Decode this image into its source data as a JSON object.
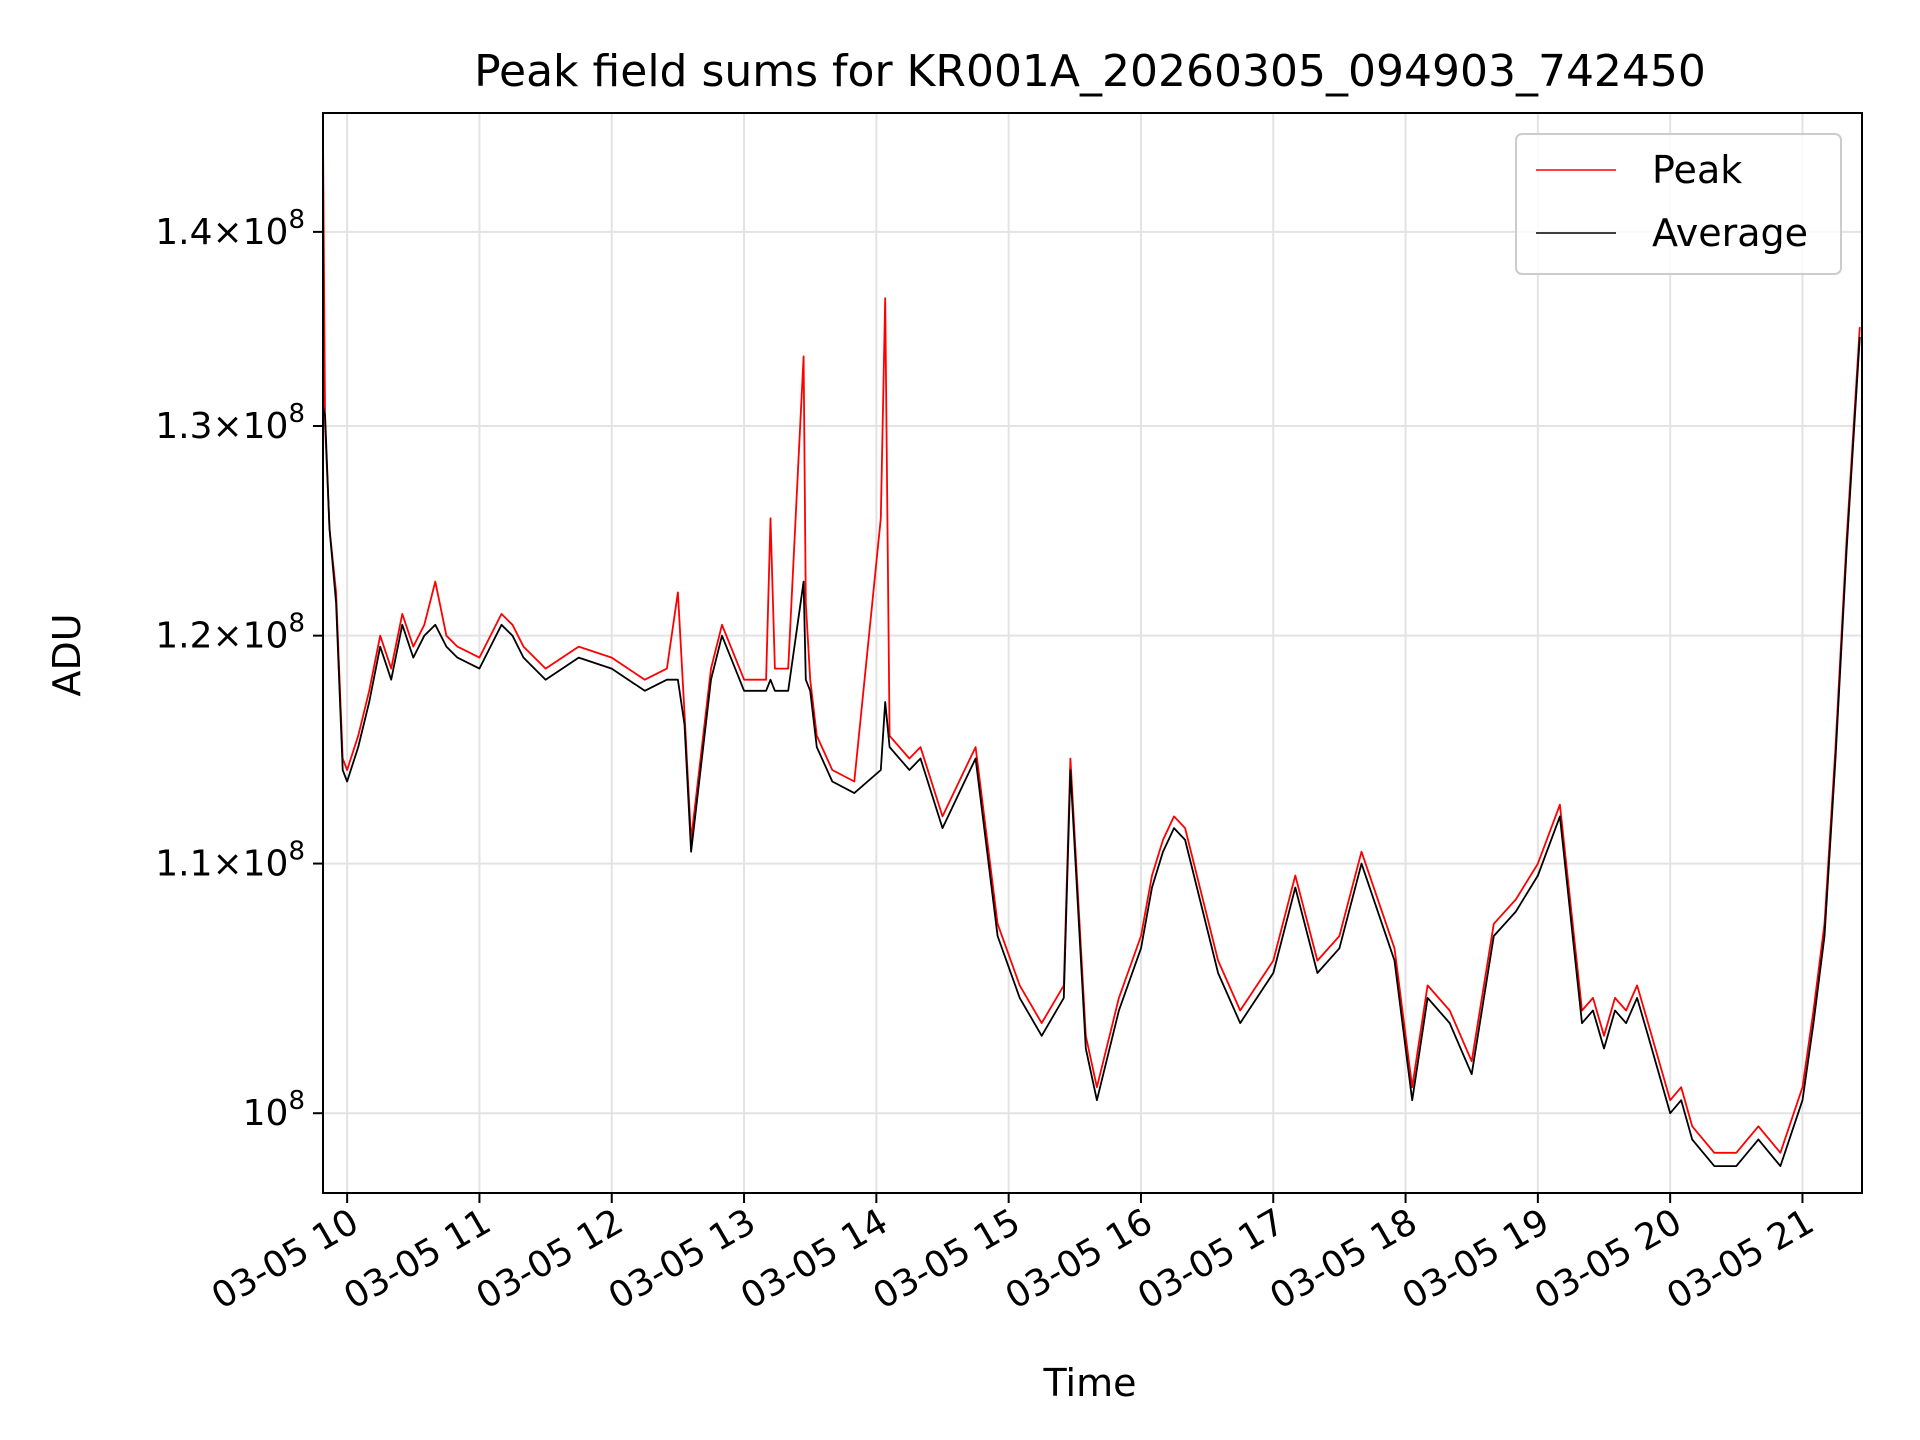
{
  "chart_data": {
    "type": "line",
    "title": "Peak field sums for KR001A_20260305_094903_742450",
    "xlabel": "Time",
    "ylabel": "ADU",
    "y_scale": "log",
    "ylim": [
      97000000,
      146500000
    ],
    "xlim": [
      "2026-03-05T09:49:03",
      "2026-03-05T21:27:00"
    ],
    "x_ticks": [
      {
        "t": "2026-03-05T10:00",
        "label": "03-05 10"
      },
      {
        "t": "2026-03-05T11:00",
        "label": "03-05 11"
      },
      {
        "t": "2026-03-05T12:00",
        "label": "03-05 12"
      },
      {
        "t": "2026-03-05T13:00",
        "label": "03-05 13"
      },
      {
        "t": "2026-03-05T14:00",
        "label": "03-05 14"
      },
      {
        "t": "2026-03-05T15:00",
        "label": "03-05 15"
      },
      {
        "t": "2026-03-05T16:00",
        "label": "03-05 16"
      },
      {
        "t": "2026-03-05T17:00",
        "label": "03-05 17"
      },
      {
        "t": "2026-03-05T18:00",
        "label": "03-05 18"
      },
      {
        "t": "2026-03-05T19:00",
        "label": "03-05 19"
      },
      {
        "t": "2026-03-05T20:00",
        "label": "03-05 20"
      },
      {
        "t": "2026-03-05T21:00",
        "label": "03-05 21"
      }
    ],
    "y_ticks": [
      {
        "value": 100000000,
        "mantissa": "",
        "exponent": "8"
      },
      {
        "value": 110000000,
        "mantissa": "1.1",
        "exponent": "8"
      },
      {
        "value": 120000000,
        "mantissa": "1.2",
        "exponent": "8"
      },
      {
        "value": 130000000,
        "mantissa": "1.3",
        "exponent": "8"
      },
      {
        "value": 140000000,
        "mantissa": "1.4",
        "exponent": "8"
      }
    ],
    "grid": true,
    "legend_position": "top-right",
    "series": [
      {
        "name": "Peak",
        "color": "#ff0000",
        "x": [
          "2026-03-05T09:49",
          "2026-03-05T09:50",
          "2026-03-05T09:52",
          "2026-03-05T09:55",
          "2026-03-05T09:58",
          "2026-03-05T10:00",
          "2026-03-05T10:05",
          "2026-03-05T10:10",
          "2026-03-05T10:15",
          "2026-03-05T10:20",
          "2026-03-05T10:25",
          "2026-03-05T10:30",
          "2026-03-05T10:35",
          "2026-03-05T10:40",
          "2026-03-05T10:45",
          "2026-03-05T10:50",
          "2026-03-05T11:00",
          "2026-03-05T11:10",
          "2026-03-05T11:15",
          "2026-03-05T11:20",
          "2026-03-05T11:30",
          "2026-03-05T11:45",
          "2026-03-05T12:00",
          "2026-03-05T12:15",
          "2026-03-05T12:25",
          "2026-03-05T12:30",
          "2026-03-05T12:33",
          "2026-03-05T12:36",
          "2026-03-05T12:45",
          "2026-03-05T12:50",
          "2026-03-05T13:00",
          "2026-03-05T13:10",
          "2026-03-05T13:12",
          "2026-03-05T13:14",
          "2026-03-05T13:20",
          "2026-03-05T13:27",
          "2026-03-05T13:28",
          "2026-03-05T13:30",
          "2026-03-05T13:33",
          "2026-03-05T13:40",
          "2026-03-05T13:50",
          "2026-03-05T14:02",
          "2026-03-05T14:04",
          "2026-03-05T14:06",
          "2026-03-05T14:15",
          "2026-03-05T14:20",
          "2026-03-05T14:30",
          "2026-03-05T14:40",
          "2026-03-05T14:45",
          "2026-03-05T14:55",
          "2026-03-05T15:05",
          "2026-03-05T15:15",
          "2026-03-05T15:25",
          "2026-03-05T15:28",
          "2026-03-05T15:35",
          "2026-03-05T15:40",
          "2026-03-05T15:50",
          "2026-03-05T16:00",
          "2026-03-05T16:05",
          "2026-03-05T16:10",
          "2026-03-05T16:15",
          "2026-03-05T16:20",
          "2026-03-05T16:35",
          "2026-03-05T16:45",
          "2026-03-05T17:00",
          "2026-03-05T17:10",
          "2026-03-05T17:20",
          "2026-03-05T17:30",
          "2026-03-05T17:40",
          "2026-03-05T17:55",
          "2026-03-05T18:03",
          "2026-03-05T18:10",
          "2026-03-05T18:20",
          "2026-03-05T18:30",
          "2026-03-05T18:40",
          "2026-03-05T18:50",
          "2026-03-05T19:00",
          "2026-03-05T19:10",
          "2026-03-05T19:20",
          "2026-03-05T19:25",
          "2026-03-05T19:30",
          "2026-03-05T19:35",
          "2026-03-05T19:40",
          "2026-03-05T19:45",
          "2026-03-05T19:50",
          "2026-03-05T20:00",
          "2026-03-05T20:05",
          "2026-03-05T20:10",
          "2026-03-05T20:20",
          "2026-03-05T20:30",
          "2026-03-05T20:40",
          "2026-03-05T20:50",
          "2026-03-05T21:00",
          "2026-03-05T21:05",
          "2026-03-05T21:10",
          "2026-03-05T21:15",
          "2026-03-05T21:20",
          "2026-03-05T21:26"
        ],
        "values": [
          146000000,
          130000000,
          125000000,
          122000000,
          114500000,
          114000000,
          115500000,
          117500000,
          120000000,
          118500000,
          121000000,
          119500000,
          120500000,
          122500000,
          120000000,
          119500000,
          119000000,
          121000000,
          120500000,
          119500000,
          118500000,
          119500000,
          119000000,
          118000000,
          118500000,
          122000000,
          116500000,
          111000000,
          118500000,
          120500000,
          118000000,
          118000000,
          125500000,
          118500000,
          118500000,
          133500000,
          121500000,
          118000000,
          115500000,
          114000000,
          113500000,
          125500000,
          136500000,
          115500000,
          114500000,
          115000000,
          112000000,
          114000000,
          115000000,
          107500000,
          105000000,
          103500000,
          105000000,
          114500000,
          103000000,
          101000000,
          104500000,
          107000000,
          109500000,
          111000000,
          112000000,
          111500000,
          106000000,
          104000000,
          106000000,
          109500000,
          106000000,
          107000000,
          110500000,
          106500000,
          101000000,
          105000000,
          104000000,
          102000000,
          107500000,
          108500000,
          110000000,
          112500000,
          104000000,
          104500000,
          103000000,
          104500000,
          104000000,
          105000000,
          103500000,
          100500000,
          101000000,
          99500000,
          98500000,
          98500000,
          99500000,
          98500000,
          101000000,
          104000000,
          107500000,
          115000000,
          124500000,
          135000000
        ]
      },
      {
        "name": "Average",
        "color": "#000000",
        "x": [
          "2026-03-05T09:49",
          "2026-03-05T09:50",
          "2026-03-05T09:52",
          "2026-03-05T09:55",
          "2026-03-05T09:58",
          "2026-03-05T10:00",
          "2026-03-05T10:05",
          "2026-03-05T10:10",
          "2026-03-05T10:15",
          "2026-03-05T10:20",
          "2026-03-05T10:25",
          "2026-03-05T10:30",
          "2026-03-05T10:35",
          "2026-03-05T10:40",
          "2026-03-05T10:45",
          "2026-03-05T10:50",
          "2026-03-05T11:00",
          "2026-03-05T11:10",
          "2026-03-05T11:15",
          "2026-03-05T11:20",
          "2026-03-05T11:30",
          "2026-03-05T11:45",
          "2026-03-05T12:00",
          "2026-03-05T12:15",
          "2026-03-05T12:25",
          "2026-03-05T12:30",
          "2026-03-05T12:33",
          "2026-03-05T12:36",
          "2026-03-05T12:45",
          "2026-03-05T12:50",
          "2026-03-05T13:00",
          "2026-03-05T13:10",
          "2026-03-05T13:12",
          "2026-03-05T13:14",
          "2026-03-05T13:20",
          "2026-03-05T13:27",
          "2026-03-05T13:28",
          "2026-03-05T13:30",
          "2026-03-05T13:33",
          "2026-03-05T13:40",
          "2026-03-05T13:50",
          "2026-03-05T14:02",
          "2026-03-05T14:04",
          "2026-03-05T14:06",
          "2026-03-05T14:15",
          "2026-03-05T14:20",
          "2026-03-05T14:30",
          "2026-03-05T14:40",
          "2026-03-05T14:45",
          "2026-03-05T14:55",
          "2026-03-05T15:05",
          "2026-03-05T15:15",
          "2026-03-05T15:25",
          "2026-03-05T15:28",
          "2026-03-05T15:35",
          "2026-03-05T15:40",
          "2026-03-05T15:50",
          "2026-03-05T16:00",
          "2026-03-05T16:05",
          "2026-03-05T16:10",
          "2026-03-05T16:15",
          "2026-03-05T16:20",
          "2026-03-05T16:35",
          "2026-03-05T16:45",
          "2026-03-05T17:00",
          "2026-03-05T17:10",
          "2026-03-05T17:20",
          "2026-03-05T17:30",
          "2026-03-05T17:40",
          "2026-03-05T17:55",
          "2026-03-05T18:03",
          "2026-03-05T18:10",
          "2026-03-05T18:20",
          "2026-03-05T18:30",
          "2026-03-05T18:40",
          "2026-03-05T18:50",
          "2026-03-05T19:00",
          "2026-03-05T19:10",
          "2026-03-05T19:20",
          "2026-03-05T19:25",
          "2026-03-05T19:30",
          "2026-03-05T19:35",
          "2026-03-05T19:40",
          "2026-03-05T19:45",
          "2026-03-05T19:50",
          "2026-03-05T20:00",
          "2026-03-05T20:05",
          "2026-03-05T20:10",
          "2026-03-05T20:20",
          "2026-03-05T20:30",
          "2026-03-05T20:40",
          "2026-03-05T20:50",
          "2026-03-05T21:00",
          "2026-03-05T21:05",
          "2026-03-05T21:10",
          "2026-03-05T21:15",
          "2026-03-05T21:20",
          "2026-03-05T21:26"
        ],
        "values": [
          131000000,
          130500000,
          125000000,
          121500000,
          114000000,
          113500000,
          115000000,
          117000000,
          119500000,
          118000000,
          120500000,
          119000000,
          120000000,
          120500000,
          119500000,
          119000000,
          118500000,
          120500000,
          120000000,
          119000000,
          118000000,
          119000000,
          118500000,
          117500000,
          118000000,
          118000000,
          116000000,
          110500000,
          118000000,
          120000000,
          117500000,
          117500000,
          118000000,
          117500000,
          117500000,
          122500000,
          118000000,
          117500000,
          115000000,
          113500000,
          113000000,
          114000000,
          117000000,
          115000000,
          114000000,
          114500000,
          111500000,
          113500000,
          114500000,
          107000000,
          104500000,
          103000000,
          104500000,
          114000000,
          102500000,
          100500000,
          104000000,
          106500000,
          109000000,
          110500000,
          111500000,
          111000000,
          105500000,
          103500000,
          105500000,
          109000000,
          105500000,
          106500000,
          110000000,
          106000000,
          100500000,
          104500000,
          103500000,
          101500000,
          107000000,
          108000000,
          109500000,
          112000000,
          103500000,
          104000000,
          102500000,
          104000000,
          103500000,
          104500000,
          103000000,
          100000000,
          100500000,
          99000000,
          98000000,
          98000000,
          99000000,
          98000000,
          100500000,
          103500000,
          107000000,
          114500000,
          124000000,
          134500000
        ]
      }
    ]
  }
}
